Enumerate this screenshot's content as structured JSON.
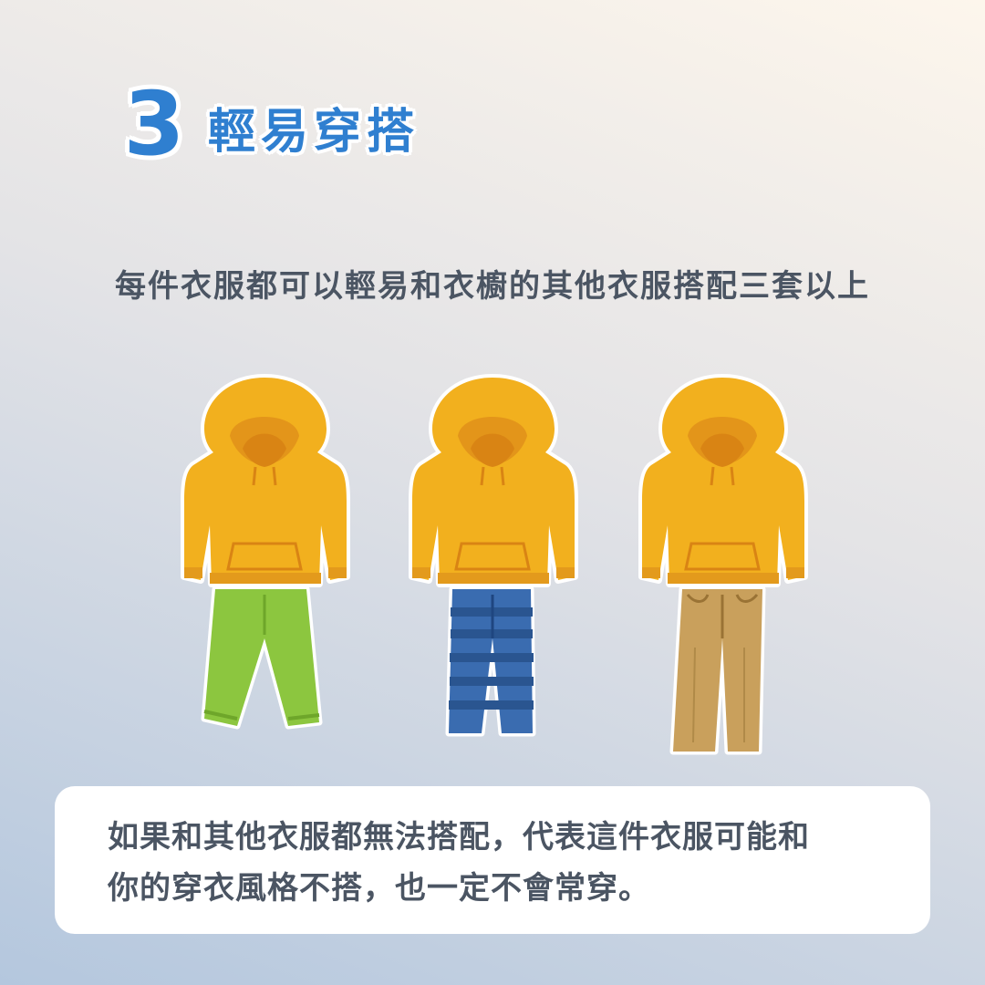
{
  "header": {
    "number": "3",
    "title": "輕易穿搭"
  },
  "subtitle": "每件衣服都可以輕易和衣櫥的其他衣服搭配三套以上",
  "outfits": [
    {
      "top_icon": "yellow-hoodie-icon",
      "bottom_icon": "green-pants-icon",
      "hoodie_color": "#f2b01e",
      "pants_color": "#8cc63f"
    },
    {
      "top_icon": "yellow-hoodie-icon",
      "bottom_icon": "blue-striped-jeans-icon",
      "hoodie_color": "#f2b01e",
      "pants_color": "#3a6cb0"
    },
    {
      "top_icon": "yellow-hoodie-icon",
      "bottom_icon": "khaki-pants-icon",
      "hoodie_color": "#f2b01e",
      "pants_color": "#c9a05c"
    }
  ],
  "note": {
    "line1": "如果和其他衣服都無法搭配，代表這件衣服可能和",
    "line2": "你的穿衣風格不搭，也一定不會常穿。"
  },
  "colors": {
    "accent": "#2f7fd0",
    "text": "#4b5563",
    "card": "#ffffff"
  }
}
